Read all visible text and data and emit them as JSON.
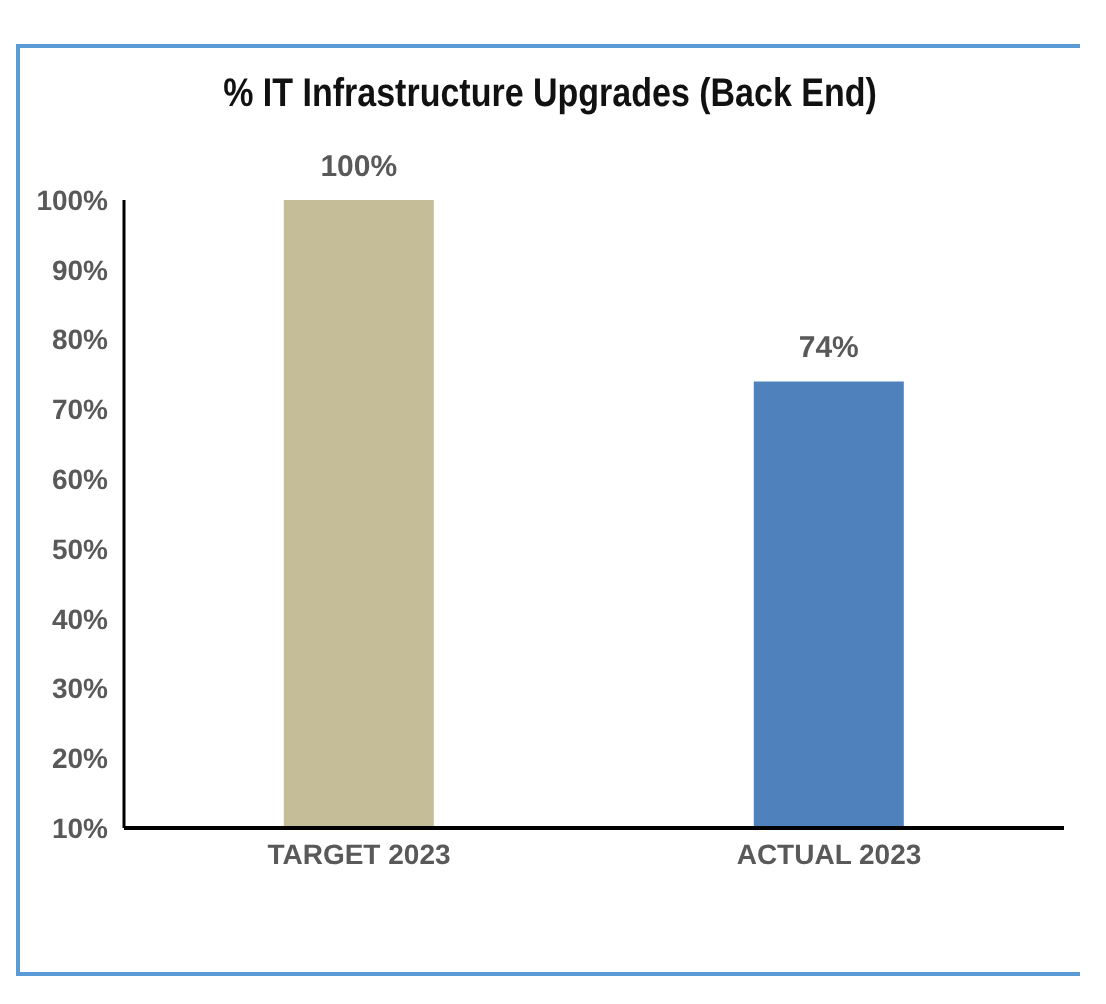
{
  "chart_data": {
    "type": "bar",
    "title": "% IT Infrastructure Upgrades (Back End)",
    "categories": [
      "TARGET  2023",
      "ACTUAL 2023"
    ],
    "values": [
      100,
      74
    ],
    "colors": [
      "#c4bd97",
      "#4f81bd"
    ],
    "value_labels": [
      "100%",
      "74%"
    ],
    "ylim": [
      10,
      100
    ],
    "yticks": [
      {
        "value": 10,
        "label": "10%"
      },
      {
        "value": 20,
        "label": "20%"
      },
      {
        "value": 30,
        "label": "30%"
      },
      {
        "value": 40,
        "label": "40%"
      },
      {
        "value": 50,
        "label": "50%"
      },
      {
        "value": 60,
        "label": "60%"
      },
      {
        "value": 70,
        "label": "70%"
      },
      {
        "value": 80,
        "label": "80%"
      },
      {
        "value": 90,
        "label": "90%"
      },
      {
        "value": 100,
        "label": "100%"
      }
    ],
    "grid": false
  }
}
